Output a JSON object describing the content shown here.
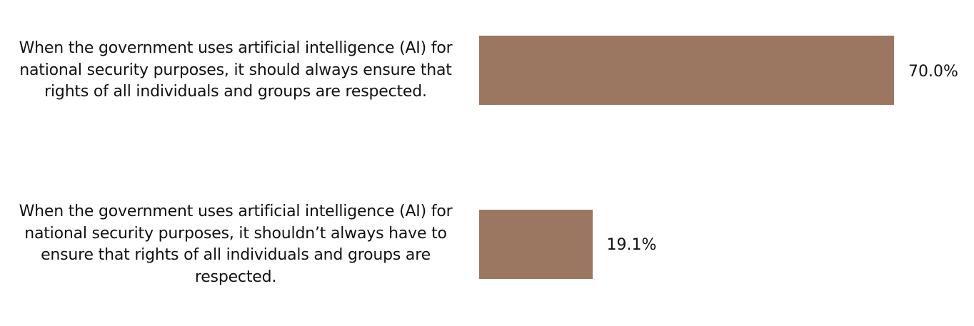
{
  "chart_data": {
    "type": "bar",
    "orientation": "horizontal",
    "title": "",
    "xlabel": "",
    "ylabel": "",
    "grid": false,
    "legend": "none",
    "bar_color": "#9b7762",
    "value_format": "percent_one_decimal",
    "categories": [
      "When the government uses artificial intelligence (AI) for national security purposes, it should always ensure that rights of all individuals and groups are respected.",
      "When the government uses artificial intelligence (AI) for national security purposes, it shouldn’t always have to ensure that rights of all individuals and groups are respected."
    ],
    "values": [
      70.0,
      19.1
    ],
    "value_labels": [
      "70.0%",
      "19.1%"
    ]
  }
}
